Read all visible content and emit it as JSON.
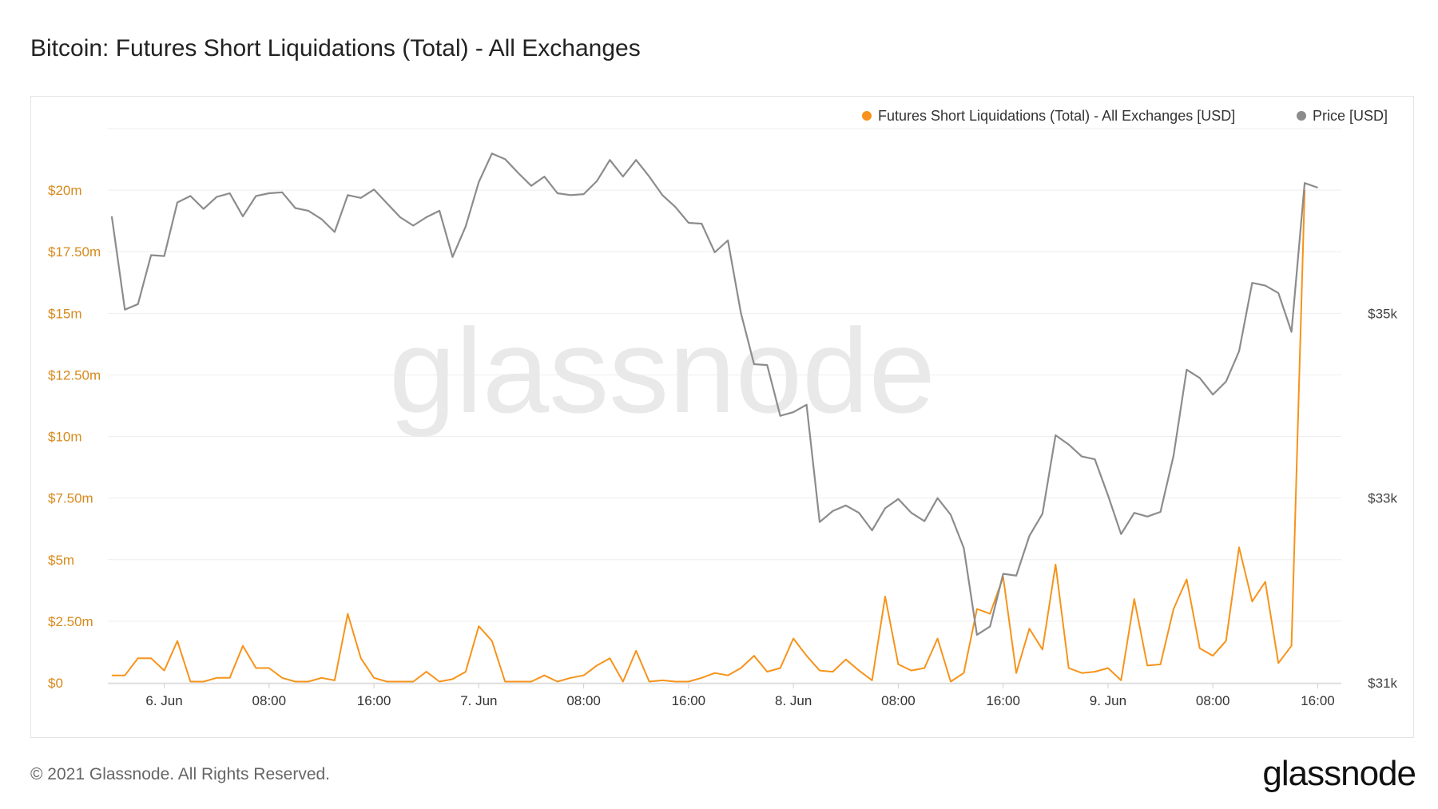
{
  "title": "Bitcoin: Futures Short Liquidations (Total) - All Exchanges",
  "footer": {
    "copyright": "© 2021 Glassnode. All Rights Reserved.",
    "logo": "glassnode"
  },
  "watermark": "glassnode",
  "colors": {
    "liquidations": "#f7931a",
    "price": "#8c8c8c",
    "left_axis_text": "#d68a1c",
    "right_axis_text": "#444444",
    "grid": "#eeeeee"
  },
  "chart_data": {
    "type": "line",
    "x_unit": "hours since 6 Jun 2021 00:00 (4-hour steps)",
    "x_ticks": [
      {
        "x": 0,
        "label": "6. Jun"
      },
      {
        "x": 8,
        "label": "08:00"
      },
      {
        "x": 16,
        "label": "16:00"
      },
      {
        "x": 24,
        "label": "7. Jun"
      },
      {
        "x": 32,
        "label": "08:00"
      },
      {
        "x": 40,
        "label": "16:00"
      },
      {
        "x": 48,
        "label": "8. Jun"
      },
      {
        "x": 56,
        "label": "08:00"
      },
      {
        "x": 64,
        "label": "16:00"
      },
      {
        "x": 72,
        "label": "9. Jun"
      },
      {
        "x": 80,
        "label": "08:00"
      },
      {
        "x": 88,
        "label": "16:00"
      }
    ],
    "xlim": [
      -4.3,
      89.8
    ],
    "left_axis": {
      "ylim": [
        0,
        22.5
      ],
      "ticks": [
        {
          "v": 0,
          "label": "$0"
        },
        {
          "v": 2.5,
          "label": "$2.50m"
        },
        {
          "v": 5,
          "label": "$5m"
        },
        {
          "v": 7.5,
          "label": "$7.50m"
        },
        {
          "v": 10,
          "label": "$10m"
        },
        {
          "v": 12.5,
          "label": "$12.50m"
        },
        {
          "v": 15,
          "label": "$15m"
        },
        {
          "v": 17.5,
          "label": "$17.50m"
        },
        {
          "v": 20,
          "label": "$20m"
        }
      ]
    },
    "right_axis": {
      "ylim": [
        31000,
        37000
      ],
      "ticks": [
        {
          "v": 31000,
          "label": "$31k"
        },
        {
          "v": 33000,
          "label": "$33k"
        },
        {
          "v": 35000,
          "label": "$35k"
        }
      ]
    },
    "legend": {
      "placement": "top-right"
    },
    "series": [
      {
        "name": "Futures Short Liquidations (Total) - All Exchanges [USD]",
        "axis": "left",
        "x_start": -4,
        "x_step": 1,
        "values": [
          0.3,
          0.3,
          1.0,
          1.0,
          0.5,
          1.7,
          0.05,
          0.05,
          0.2,
          0.2,
          1.5,
          0.6,
          0.6,
          0.2,
          0.05,
          0.05,
          0.2,
          0.1,
          2.8,
          1.0,
          0.2,
          0.05,
          0.05,
          0.05,
          0.45,
          0.05,
          0.15,
          0.45,
          2.3,
          1.7,
          0.05,
          0.05,
          0.05,
          0.3,
          0.05,
          0.2,
          0.3,
          0.7,
          1.0,
          0.05,
          1.3,
          0.05,
          0.1,
          0.05,
          0.05,
          0.2,
          0.4,
          0.3,
          0.6,
          1.1,
          0.45,
          0.6,
          1.8,
          1.1,
          0.5,
          0.45,
          0.95,
          0.5,
          0.1,
          3.5,
          0.75,
          0.5,
          0.6,
          1.8,
          0.05,
          0.4,
          3.0,
          2.8,
          4.3,
          0.4,
          2.2,
          1.35,
          4.8,
          0.6,
          0.4,
          0.45,
          0.6,
          0.1,
          3.4,
          0.7,
          0.75,
          3.0,
          4.2,
          1.4,
          1.1,
          1.7,
          5.5,
          3.3,
          4.1,
          0.8,
          1.5,
          20.0
        ]
      },
      {
        "name": "Price [USD]",
        "axis": "right",
        "x_start": -4,
        "x_step": 1,
        "values": [
          36050,
          35040,
          35100,
          35630,
          35620,
          36200,
          36270,
          36130,
          36260,
          36300,
          36050,
          36270,
          36300,
          36310,
          36140,
          36110,
          36020,
          35880,
          36280,
          36250,
          36340,
          36190,
          36040,
          35950,
          36040,
          36110,
          35610,
          35940,
          36420,
          36730,
          36670,
          36520,
          36380,
          36480,
          36300,
          36280,
          36290,
          36430,
          36660,
          36480,
          36660,
          36480,
          36280,
          36150,
          35980,
          35970,
          35660,
          35790,
          35000,
          34450,
          34440,
          33890,
          33930,
          34010,
          32740,
          32860,
          32920,
          32840,
          32650,
          32890,
          32990,
          32840,
          32750,
          33000,
          32820,
          32460,
          31520,
          31610,
          32180,
          32160,
          32590,
          32830,
          33680,
          33580,
          33450,
          33420,
          33030,
          32610,
          32840,
          32800,
          32850,
          33460,
          34390,
          34300,
          34120,
          34260,
          34590,
          35330,
          35300,
          35220,
          34800,
          36410,
          36360
        ]
      }
    ]
  }
}
